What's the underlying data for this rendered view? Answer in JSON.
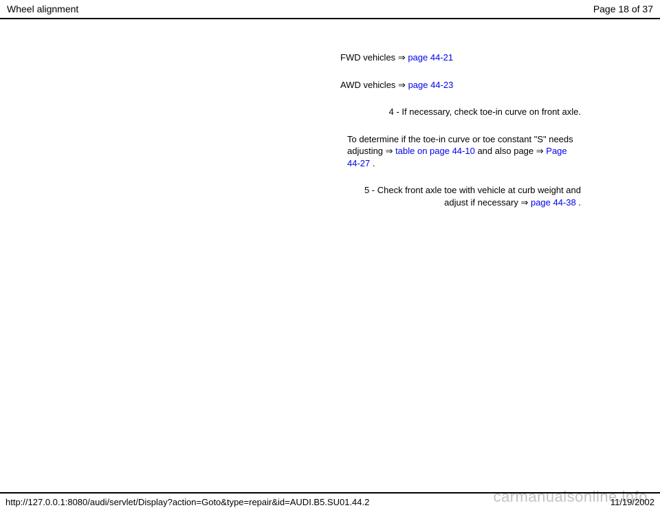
{
  "header": {
    "title": "Wheel alignment",
    "page_info": "Page 18 of 37"
  },
  "content": {
    "fwd_line": {
      "prefix": "FWD vehicles ",
      "arrow": "⇒",
      "link": " page 44-21"
    },
    "awd_line": {
      "prefix": "AWD vehicles ",
      "arrow": "⇒",
      "link": " page 44-23"
    },
    "step4": "4 - If necessary, check toe-in curve on front axle.",
    "toe_determine": {
      "t1": "To determine if the toe-in curve or toe constant \"S\" needs adjusting ",
      "arrow1": "⇒",
      "link1": " table on page 44-10",
      "t2": " and also page ",
      "arrow2": "⇒",
      "link2": " Page 44-27",
      "t3": " ."
    },
    "step5": {
      "t1": "5 - Check front axle toe with vehicle at curb weight and adjust if necessary ",
      "arrow": "⇒",
      "link": " page 44-38",
      "t2": " ."
    }
  },
  "footer": {
    "url": "http://127.0.0.1:8080/audi/servlet/Display?action=Goto&type=repair&id=AUDI.B5.SU01.44.2",
    "date": "11/19/2002"
  },
  "watermark": "carmanualsonline.info"
}
